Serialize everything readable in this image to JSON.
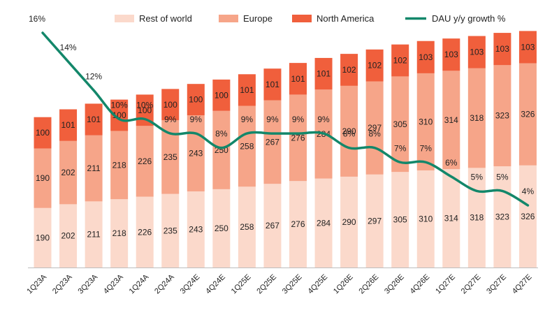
{
  "chart_data": {
    "type": "bar",
    "stacked": true,
    "categories": [
      "1Q23A",
      "2Q23A",
      "3Q23A",
      "4Q23A",
      "1Q24A",
      "2Q24A",
      "3Q24E",
      "4Q24E",
      "1Q25E",
      "2Q25E",
      "3Q25E",
      "4Q25E",
      "1Q26E",
      "2Q26E",
      "3Q26E",
      "4Q26E",
      "1Q27E",
      "2Q27E",
      "3Q27E",
      "4Q27E"
    ],
    "series": [
      {
        "name": "Rest of world",
        "color": "#fbd9cb",
        "values": [
          190,
          202,
          211,
          218,
          226,
          235,
          243,
          250,
          258,
          267,
          276,
          284,
          290,
          297,
          305,
          310,
          314,
          318,
          323,
          326
        ]
      },
      {
        "name": "Europe",
        "color": "#f6a589",
        "values": [
          190,
          202,
          211,
          218,
          226,
          235,
          243,
          250,
          258,
          267,
          276,
          284,
          290,
          297,
          305,
          310,
          314,
          318,
          323,
          326
        ]
      },
      {
        "name": "North America",
        "color": "#f05f3c",
        "values": [
          100,
          101,
          101,
          100,
          100,
          100,
          100,
          100,
          101,
          101,
          101,
          101,
          102,
          102,
          102,
          103,
          103,
          103,
          103,
          103
        ]
      }
    ],
    "line_series": {
      "name": "DAU y/y growth %",
      "color": "#13876a",
      "values": [
        16,
        14,
        12,
        10,
        10,
        9,
        9,
        8,
        9,
        9,
        9,
        9,
        8,
        8,
        7,
        7,
        6,
        5,
        5,
        4
      ],
      "labels": [
        "16%",
        "14%",
        "12%",
        "10%",
        "10%",
        "9%",
        "9%",
        "8%",
        "9%",
        "9%",
        "9%",
        "9%",
        "8%",
        "8%",
        "7%",
        "7%",
        "6%",
        "5%",
        "5%",
        "4%"
      ]
    },
    "ylim": [
      0,
      780
    ],
    "legend": "top",
    "grid": false
  }
}
